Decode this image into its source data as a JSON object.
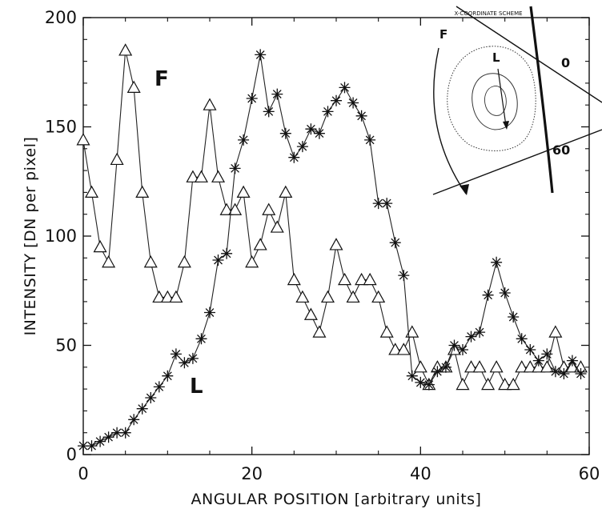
{
  "chart_data": {
    "type": "line",
    "title": "",
    "xlabel": "ANGULAR POSITION [arbitrary units]",
    "ylabel": "INTENSITY [DN per pixel]",
    "xlim": [
      0,
      60
    ],
    "ylim": [
      0,
      200
    ],
    "xticks": [
      "0",
      "20",
      "40",
      "60"
    ],
    "yticks": [
      "0",
      "50",
      "100",
      "150",
      "200"
    ],
    "grid": false,
    "legend": "none",
    "series": [
      {
        "name": "F",
        "marker": "triangle",
        "x": [
          0,
          1,
          2,
          3,
          4,
          5,
          6,
          7,
          8,
          9,
          10,
          11,
          12,
          13,
          14,
          15,
          16,
          17,
          18,
          19,
          20,
          21,
          22,
          23,
          24,
          25,
          26,
          27,
          28,
          29,
          30,
          31,
          32,
          33,
          34,
          35,
          36,
          37,
          38,
          39,
          40,
          41,
          42,
          43,
          44,
          45,
          46,
          47,
          48,
          49,
          50,
          51,
          52,
          53,
          54,
          55,
          56,
          57,
          58,
          59
        ],
        "values": [
          144,
          120,
          95,
          88,
          135,
          185,
          168,
          120,
          88,
          72,
          72,
          72,
          88,
          127,
          127,
          160,
          127,
          112,
          112,
          120,
          88,
          96,
          112,
          104,
          120,
          80,
          72,
          64,
          56,
          72,
          96,
          80,
          72,
          80,
          80,
          72,
          56,
          48,
          48,
          56,
          40,
          32,
          40,
          40,
          48,
          32,
          40,
          40,
          32,
          40,
          32,
          32,
          40,
          40,
          40,
          40,
          56,
          40,
          40,
          40
        ]
      },
      {
        "name": "L",
        "marker": "asterisk",
        "x": [
          0,
          1,
          2,
          3,
          4,
          5,
          6,
          7,
          8,
          9,
          10,
          11,
          12,
          13,
          14,
          15,
          16,
          17,
          18,
          19,
          20,
          21,
          22,
          23,
          24,
          25,
          26,
          27,
          28,
          29,
          30,
          31,
          32,
          33,
          34,
          35,
          36,
          37,
          38,
          39,
          40,
          41,
          42,
          43,
          44,
          45,
          46,
          47,
          48,
          49,
          50,
          51,
          52,
          53,
          54,
          55,
          56,
          57,
          58,
          59
        ],
        "values": [
          4,
          4,
          6,
          8,
          10,
          10,
          16,
          21,
          26,
          31,
          36,
          46,
          42,
          44,
          53,
          65,
          89,
          92,
          131,
          144,
          163,
          183,
          157,
          165,
          147,
          136,
          141,
          149,
          147,
          157,
          162,
          168,
          161,
          155,
          144,
          115,
          115,
          97,
          82,
          36,
          33,
          32,
          38,
          40,
          50,
          48,
          54,
          56,
          73,
          88,
          74,
          63,
          53,
          48,
          43,
          46,
          38,
          37,
          43,
          37
        ]
      }
    ],
    "annotations": [
      "F",
      "L"
    ],
    "inset": {
      "caption": "X-COORDINATE SCHEME",
      "labels": [
        "F",
        "L",
        "0",
        "60"
      ]
    }
  }
}
